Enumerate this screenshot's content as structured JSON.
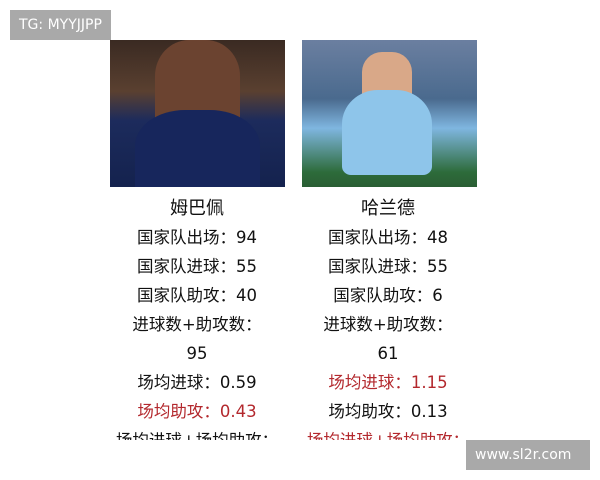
{
  "watermarks": {
    "top_left": "TG: MYYJJPP",
    "bottom_right": "www.sl2r.com"
  },
  "accent_color": "#b3282d",
  "players": [
    {
      "name": "姆巴佩",
      "rows": [
        {
          "text": "国家队出场：94",
          "highlight": false
        },
        {
          "text": "国家队进球：55",
          "highlight": false
        },
        {
          "text": "国家队助攻：40",
          "highlight": false
        },
        {
          "text": "进球数+助攻数：",
          "highlight": false
        },
        {
          "text": "95",
          "highlight": false
        },
        {
          "text": "场均进球：0.59",
          "highlight": false
        },
        {
          "text": "场均助攻：0.43",
          "highlight": true
        },
        {
          "text": "场均进球+场均助攻：",
          "highlight": false
        }
      ]
    },
    {
      "name": "哈兰德",
      "rows": [
        {
          "text": "国家队出场：48",
          "highlight": false
        },
        {
          "text": "国家队进球：55",
          "highlight": false
        },
        {
          "text": "国家队助攻：6",
          "highlight": false
        },
        {
          "text": "进球数+助攻数：",
          "highlight": false
        },
        {
          "text": "61",
          "highlight": false
        },
        {
          "text": "场均进球：1.15",
          "highlight": true
        },
        {
          "text": "场均助攻：0.13",
          "highlight": false
        },
        {
          "text": "场均进球+场均助攻：",
          "highlight": true
        }
      ]
    }
  ]
}
